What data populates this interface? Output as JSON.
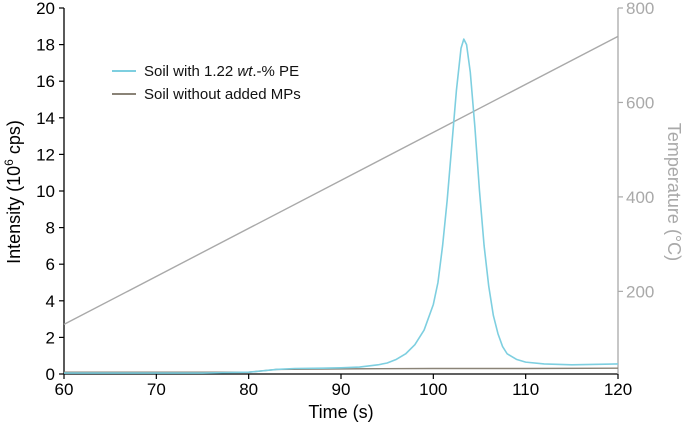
{
  "chart_data": {
    "type": "line",
    "title": "",
    "xlabel": "Time (s)",
    "ylabel_parts": [
      "Intensity (10",
      "6",
      " cps)"
    ],
    "y2label": "Temperature (°C)",
    "xlim": [
      60,
      120
    ],
    "ylim": [
      0,
      20
    ],
    "y2lim": [
      25,
      800
    ],
    "xticks": [
      "60",
      "70",
      "80",
      "90",
      "100",
      "110",
      "120"
    ],
    "yticks": [
      "0",
      "2",
      "4",
      "6",
      "8",
      "10",
      "12",
      "14",
      "16",
      "18",
      "20"
    ],
    "y2ticks": [
      "200",
      "400",
      "600",
      "800"
    ],
    "legend_position": "upper-left",
    "series": [
      {
        "name_parts": [
          "Soil with 1.22 ",
          "wt",
          ".-% PE"
        ],
        "color": "#7ecfe0",
        "axis": "left",
        "x": [
          60,
          75,
          80,
          83,
          85,
          88,
          90,
          92,
          94,
          95,
          96,
          97,
          98,
          99,
          100,
          100.5,
          101,
          101.5,
          102,
          102.5,
          103,
          103.3,
          103.6,
          104,
          104.5,
          105,
          105.5,
          106,
          106.5,
          107,
          107.5,
          108,
          109,
          110,
          112,
          115,
          120
        ],
        "y": [
          0.05,
          0.05,
          0.1,
          0.25,
          0.3,
          0.32,
          0.34,
          0.38,
          0.5,
          0.6,
          0.8,
          1.1,
          1.6,
          2.4,
          3.8,
          5.0,
          7.0,
          9.5,
          12.5,
          15.5,
          17.8,
          18.3,
          18.0,
          16.5,
          13.5,
          10.0,
          7.0,
          4.8,
          3.2,
          2.2,
          1.5,
          1.1,
          0.8,
          0.65,
          0.55,
          0.5,
          0.55
        ]
      },
      {
        "name": "Soil without added MPs",
        "color": "#8a8377",
        "axis": "left",
        "x": [
          60,
          80,
          83,
          90,
          100,
          110,
          120
        ],
        "y": [
          0.1,
          0.1,
          0.25,
          0.28,
          0.3,
          0.3,
          0.32
        ]
      },
      {
        "name": "Temperature",
        "color": "#a9a9a9",
        "axis": "right",
        "x": [
          60,
          120
        ],
        "y": [
          130,
          740
        ]
      }
    ],
    "colors": {
      "left_axis": "#000000",
      "right_axis": "#a9a9a9"
    }
  }
}
